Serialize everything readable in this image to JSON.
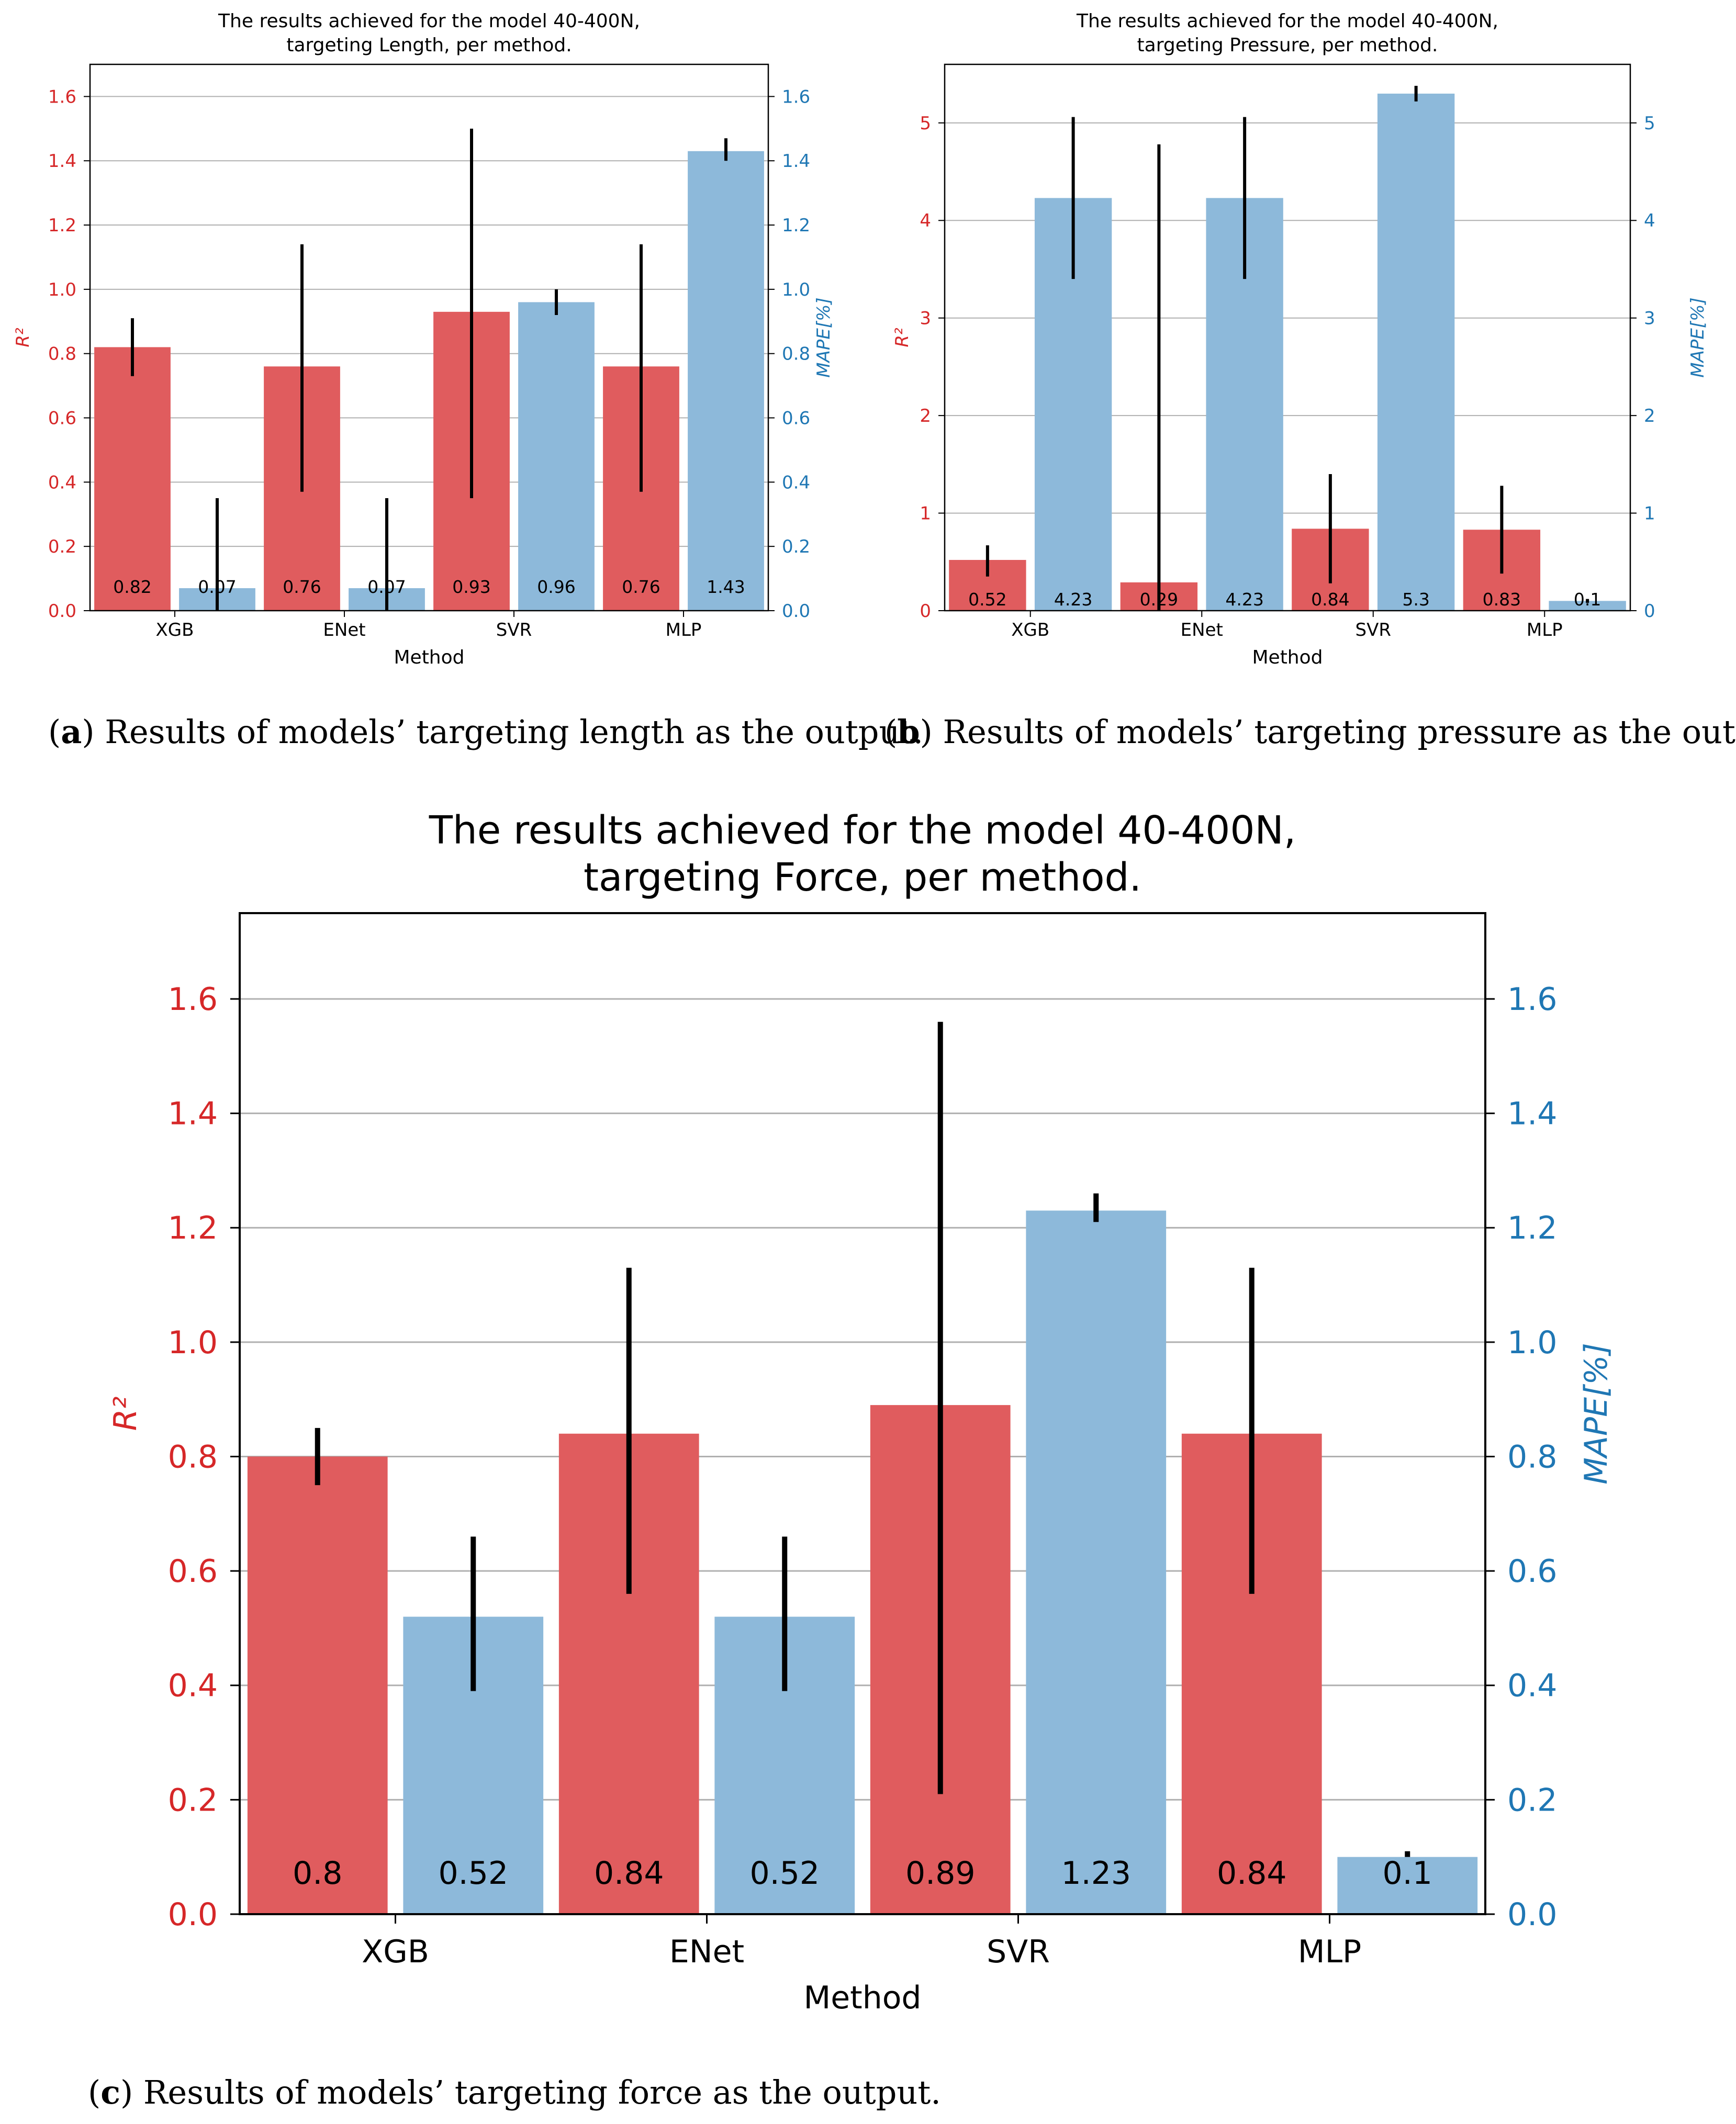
{
  "colors": {
    "r2": "#e05c5e",
    "mape": "#8db9da",
    "r2_axis": "#d62728",
    "mape_axis": "#1f77b4",
    "grid": "#b0b0b0",
    "errorbar": "#000000"
  },
  "chart_data": [
    {
      "id": "a",
      "type": "bar",
      "title": "The results achieved for the model 40-400N,\ntargeting Length, per method.",
      "xlabel": "Method",
      "ylabel_left": "R²",
      "ylabel_right": "MAPE[%]",
      "categories": [
        "XGB",
        "ENet",
        "SVR",
        "MLP"
      ],
      "ylim_left": [
        0,
        1.7
      ],
      "ylim_right": [
        0,
        1.7
      ],
      "yticks_left": [
        "0.0",
        "0.2",
        "0.4",
        "0.6",
        "0.8",
        "1.0",
        "1.2",
        "1.4",
        "1.6"
      ],
      "yticks_right": [
        "0.0",
        "0.2",
        "0.4",
        "0.6",
        "0.8",
        "1.0",
        "1.2",
        "1.4",
        "1.6"
      ],
      "series": [
        {
          "name": "R²",
          "axis": "left",
          "values": [
            0.82,
            0.76,
            0.93,
            0.76
          ],
          "err_low": [
            0.73,
            0.37,
            0.35,
            0.37
          ],
          "err_high": [
            0.91,
            1.14,
            1.5,
            1.14
          ],
          "labels": [
            "0.82",
            "0.76",
            "0.93",
            "0.76"
          ]
        },
        {
          "name": "MAPE[%]",
          "axis": "right",
          "values": [
            0.07,
            0.07,
            0.96,
            1.43
          ],
          "err_low": [
            0.0,
            0.0,
            0.92,
            1.4
          ],
          "err_high": [
            0.35,
            0.35,
            1.0,
            1.47
          ],
          "labels": [
            "0.07",
            "0.07",
            "0.96",
            "1.43"
          ]
        }
      ],
      "caption_label": "a",
      "caption_text": "Results of models’ targeting length as the output."
    },
    {
      "id": "b",
      "type": "bar",
      "title": "The results achieved for the model 40-400N,\ntargeting Pressure, per method.",
      "xlabel": "Method",
      "ylabel_left": "R²",
      "ylabel_right": "MAPE[%]",
      "categories": [
        "XGB",
        "ENet",
        "SVR",
        "MLP"
      ],
      "ylim_left": [
        0,
        5.6
      ],
      "ylim_right": [
        0,
        5.6
      ],
      "yticks_left": [
        "0",
        "1",
        "2",
        "3",
        "4",
        "5"
      ],
      "yticks_right": [
        "0",
        "1",
        "2",
        "3",
        "4",
        "5"
      ],
      "series": [
        {
          "name": "R²",
          "axis": "left",
          "values": [
            0.52,
            0.29,
            0.84,
            0.83
          ],
          "err_low": [
            0.35,
            0.0,
            0.28,
            0.38
          ],
          "err_high": [
            0.67,
            4.78,
            1.4,
            1.28
          ],
          "labels": [
            "0.52",
            "0.29",
            "0.84",
            "0.83"
          ]
        },
        {
          "name": "MAPE[%]",
          "axis": "right",
          "values": [
            4.23,
            4.23,
            5.3,
            0.1
          ],
          "err_low": [
            3.4,
            3.4,
            5.22,
            0.08
          ],
          "err_high": [
            5.06,
            5.06,
            5.38,
            0.12
          ],
          "labels": [
            "4.23",
            "4.23",
            "5.3",
            "0.1"
          ]
        }
      ],
      "caption_label": "b",
      "caption_text": "Results of models’ targeting pressure as the output."
    },
    {
      "id": "c",
      "type": "bar",
      "title": "The results achieved for the model 40-400N,\ntargeting Force, per method.",
      "xlabel": "Method",
      "ylabel_left": "R²",
      "ylabel_right": "MAPE[%]",
      "categories": [
        "XGB",
        "ENet",
        "SVR",
        "MLP"
      ],
      "ylim_left": [
        0,
        1.75
      ],
      "ylim_right": [
        0,
        1.75
      ],
      "yticks_left": [
        "0.0",
        "0.2",
        "0.4",
        "0.6",
        "0.8",
        "1.0",
        "1.2",
        "1.4",
        "1.6"
      ],
      "yticks_right": [
        "0.0",
        "0.2",
        "0.4",
        "0.6",
        "0.8",
        "1.0",
        "1.2",
        "1.4",
        "1.6"
      ],
      "series": [
        {
          "name": "R²",
          "axis": "left",
          "values": [
            0.8,
            0.84,
            0.89,
            0.84
          ],
          "err_low": [
            0.75,
            0.56,
            0.21,
            0.56
          ],
          "err_high": [
            0.85,
            1.13,
            1.56,
            1.13
          ],
          "labels": [
            "0.8",
            "0.84",
            "0.89",
            "0.84"
          ]
        },
        {
          "name": "MAPE[%]",
          "axis": "right",
          "values": [
            0.52,
            0.52,
            1.23,
            0.1
          ],
          "err_low": [
            0.39,
            0.39,
            1.21,
            0.1
          ],
          "err_high": [
            0.66,
            0.66,
            1.26,
            0.11
          ],
          "labels": [
            "0.52",
            "0.52",
            "1.23",
            "0.1"
          ]
        }
      ],
      "caption_label": "c",
      "caption_text": "Results of models’ targeting force as the output."
    }
  ]
}
